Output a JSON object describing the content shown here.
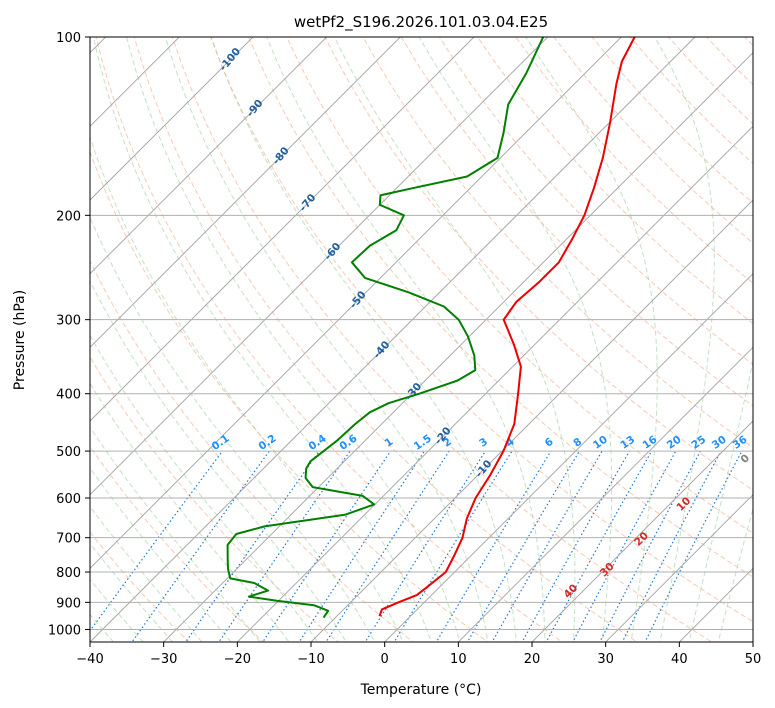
{
  "chart_data": {
    "type": "line",
    "chart_kind": "skew-T log-P diagram",
    "title": "wetPf2_S196.2026.101.03.04.E25",
    "xlabel": "Temperature (°C)",
    "ylabel": "Pressure (hPa)",
    "xlim": [
      -40,
      50
    ],
    "ylim": [
      1050,
      100
    ],
    "x_ticks": [
      -40,
      -30,
      -20,
      -10,
      0,
      10,
      20,
      30,
      40,
      50
    ],
    "y_ticks": [
      100,
      200,
      300,
      400,
      500,
      600,
      700,
      800,
      900,
      1000
    ],
    "grid": true,
    "mixing_ratio_labels": [
      "0.1",
      "0.2",
      "0.4",
      "0.6",
      "1",
      "1.5",
      "2",
      "3",
      "4",
      "6",
      "8",
      "10",
      "13",
      "16",
      "20",
      "25",
      "30",
      "36"
    ],
    "dry_adiabat_labels": [
      "-100",
      "-90",
      "-80",
      "-70",
      "-60",
      "-50",
      "-40",
      "-30",
      "-20",
      "-10"
    ],
    "moist_adiabat_labels": [
      "0",
      "10",
      "20",
      "30",
      "40"
    ],
    "series": [
      {
        "name": "Temperature",
        "color": "#ee0000",
        "points": [
          {
            "p": 950,
            "t": -4.2
          },
          {
            "p": 925,
            "t": -4.8
          },
          {
            "p": 900,
            "t": -3.5
          },
          {
            "p": 875,
            "t": -2.0
          },
          {
            "p": 850,
            "t": -1.7
          },
          {
            "p": 800,
            "t": -1.2
          },
          {
            "p": 750,
            "t": -2.3
          },
          {
            "p": 700,
            "t": -3.6
          },
          {
            "p": 650,
            "t": -5.6
          },
          {
            "p": 600,
            "t": -7.2
          },
          {
            "p": 550,
            "t": -8.3
          },
          {
            "p": 500,
            "t": -9.8
          },
          {
            "p": 450,
            "t": -12.0
          },
          {
            "p": 400,
            "t": -15.6
          },
          {
            "p": 360,
            "t": -18.9
          },
          {
            "p": 330,
            "t": -22.9
          },
          {
            "p": 300,
            "t": -27.6
          },
          {
            "p": 280,
            "t": -28.3
          },
          {
            "p": 260,
            "t": -27.9
          },
          {
            "p": 240,
            "t": -27.9
          },
          {
            "p": 220,
            "t": -29.2
          },
          {
            "p": 200,
            "t": -30.8
          },
          {
            "p": 180,
            "t": -33.2
          },
          {
            "p": 160,
            "t": -36.1
          },
          {
            "p": 140,
            "t": -39.8
          },
          {
            "p": 120,
            "t": -44.3
          },
          {
            "p": 110,
            "t": -46.6
          },
          {
            "p": 100,
            "t": -48.2
          }
        ]
      },
      {
        "name": "Dewpoint",
        "color": "#008000",
        "points": [
          {
            "p": 955,
            "t": -11.6
          },
          {
            "p": 930,
            "t": -11.9
          },
          {
            "p": 910,
            "t": -14.6
          },
          {
            "p": 895,
            "t": -20.1
          },
          {
            "p": 880,
            "t": -24.6
          },
          {
            "p": 860,
            "t": -22.8
          },
          {
            "p": 835,
            "t": -25.7
          },
          {
            "p": 820,
            "t": -29.6
          },
          {
            "p": 790,
            "t": -31.2
          },
          {
            "p": 760,
            "t": -32.6
          },
          {
            "p": 720,
            "t": -34.5
          },
          {
            "p": 690,
            "t": -34.8
          },
          {
            "p": 670,
            "t": -32.0
          },
          {
            "p": 640,
            "t": -22.6
          },
          {
            "p": 615,
            "t": -20.1
          },
          {
            "p": 595,
            "t": -22.8
          },
          {
            "p": 575,
            "t": -30.8
          },
          {
            "p": 555,
            "t": -33.0
          },
          {
            "p": 535,
            "t": -34.2
          },
          {
            "p": 520,
            "t": -34.6
          },
          {
            "p": 505,
            "t": -34.3
          },
          {
            "p": 480,
            "t": -33.8
          },
          {
            "p": 450,
            "t": -33.6
          },
          {
            "p": 430,
            "t": -33.2
          },
          {
            "p": 415,
            "t": -31.9
          },
          {
            "p": 400,
            "t": -29.0
          },
          {
            "p": 380,
            "t": -25.6
          },
          {
            "p": 365,
            "t": -24.6
          },
          {
            "p": 345,
            "t": -26.7
          },
          {
            "p": 320,
            "t": -30.2
          },
          {
            "p": 300,
            "t": -33.7
          },
          {
            "p": 285,
            "t": -37.5
          },
          {
            "p": 270,
            "t": -44.1
          },
          {
            "p": 255,
            "t": -52.1
          },
          {
            "p": 240,
            "t": -56.0
          },
          {
            "p": 225,
            "t": -55.8
          },
          {
            "p": 212,
            "t": -54.3
          },
          {
            "p": 200,
            "t": -55.3
          },
          {
            "p": 192,
            "t": -60.0
          },
          {
            "p": 185,
            "t": -61.2
          },
          {
            "p": 180,
            "t": -57.8
          },
          {
            "p": 172,
            "t": -52.0
          },
          {
            "p": 160,
            "t": -50.4
          },
          {
            "p": 145,
            "t": -53.0
          },
          {
            "p": 130,
            "t": -56.2
          },
          {
            "p": 115,
            "t": -58.0
          },
          {
            "p": 100,
            "t": -60.6
          }
        ]
      }
    ]
  }
}
